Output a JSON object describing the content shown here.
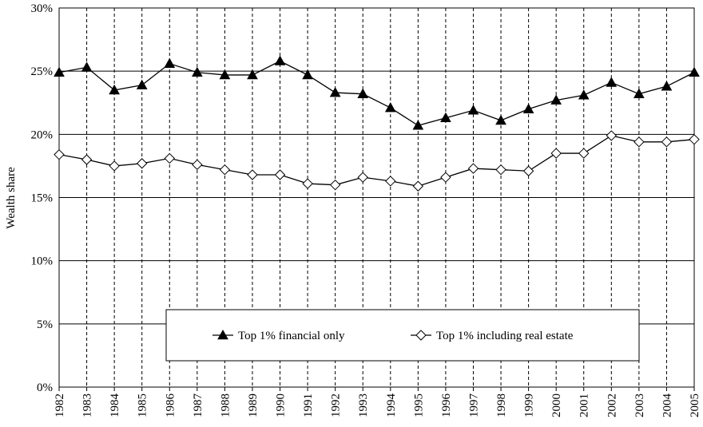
{
  "chart_data": {
    "type": "line",
    "y_label": "Wealth share",
    "categories": [
      "1982",
      "1983",
      "1984",
      "1985",
      "1986",
      "1987",
      "1988",
      "1989",
      "1990",
      "1991",
      "1992",
      "1993",
      "1994",
      "1995",
      "1996",
      "1997",
      "1998",
      "1999",
      "2000",
      "2001",
      "2002",
      "2003",
      "2004",
      "2005"
    ],
    "series": [
      {
        "name": "Top 1% financial only",
        "color": "#000000",
        "marker": "triangle",
        "marker_fill": "#000000",
        "values": [
          24.9,
          25.3,
          23.5,
          23.9,
          25.6,
          24.9,
          24.7,
          24.7,
          25.8,
          24.7,
          23.3,
          23.2,
          22.1,
          20.7,
          21.3,
          21.9,
          21.1,
          22.0,
          22.7,
          23.1,
          24.1,
          23.2,
          23.8,
          24.9
        ]
      },
      {
        "name": "Top 1% including real estate",
        "color": "#000000",
        "marker": "diamond",
        "marker_fill": "#ffffff",
        "values": [
          18.4,
          18.0,
          17.5,
          17.7,
          18.1,
          17.6,
          17.2,
          16.8,
          16.8,
          16.1,
          16.0,
          16.6,
          16.3,
          15.9,
          16.6,
          17.3,
          17.2,
          17.1,
          18.5,
          18.5,
          19.9,
          19.4,
          19.4,
          19.6
        ]
      }
    ],
    "ylim": [
      0,
      30
    ],
    "yticks": [
      {
        "value": 0,
        "label": "0%"
      },
      {
        "value": 5,
        "label": "5%"
      },
      {
        "value": 10,
        "label": "10%"
      },
      {
        "value": 15,
        "label": "15%"
      },
      {
        "value": 20,
        "label": "20%"
      },
      {
        "value": 25,
        "label": "25%"
      },
      {
        "value": 30,
        "label": "30%"
      }
    ],
    "grid": true,
    "legend": "bottom"
  }
}
